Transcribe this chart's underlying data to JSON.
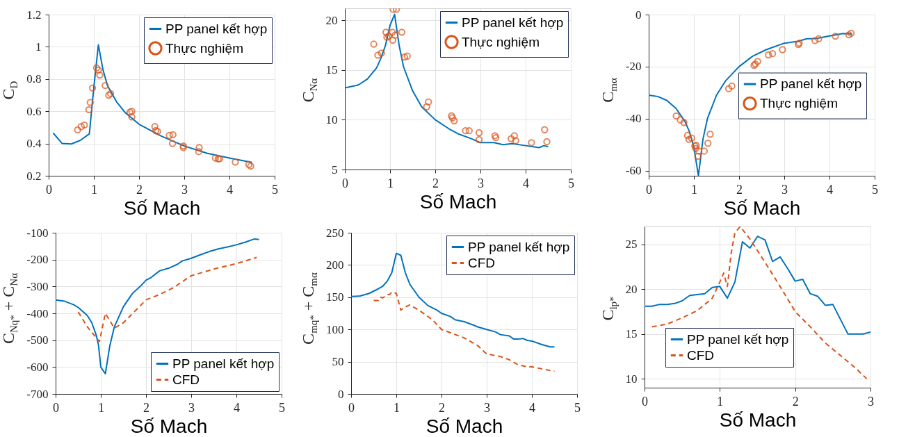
{
  "chart_data": [
    {
      "type": "line",
      "xlabel": "Số Mach",
      "ylabel": "C$_{D}$",
      "xlim": [
        0,
        5
      ],
      "xticks": [
        0,
        1,
        2,
        3,
        4,
        5
      ],
      "ylim": [
        0.2,
        1.2
      ],
      "yticks": [
        0.2,
        0.4,
        0.6,
        0.8,
        1,
        1.2
      ],
      "grid": true,
      "legend": "top right",
      "series": [
        {
          "name": "PP panel kết hợp",
          "color": "#0072bd",
          "x": [
            0.1,
            0.3,
            0.5,
            0.7,
            0.9,
            1.0,
            1.1,
            1.2,
            1.3,
            1.5,
            1.7,
            2.0,
            2.5,
            3.0,
            3.5,
            4.0,
            4.5
          ],
          "values": [
            0.465,
            0.4,
            0.397,
            0.42,
            0.46,
            0.75,
            1.013,
            0.86,
            0.76,
            0.66,
            0.59,
            0.52,
            0.445,
            0.385,
            0.34,
            0.31,
            0.283
          ]
        },
        {
          "name": "Thực nghiệm",
          "type": "scatter",
          "marker": "circle",
          "color": "#d95319",
          "x": [
            0.64,
            0.72,
            0.79,
            0.89,
            0.92,
            0.97,
            1.06,
            1.1,
            1.13,
            1.25,
            1.33,
            1.37,
            1.8,
            1.84,
            1.84,
            2.35,
            2.37,
            2.41,
            2.67,
            2.75,
            2.74,
            2.98,
            2.98,
            3.33,
            3.32,
            3.69,
            3.75,
            3.78,
            4.13,
            4.43,
            4.47
          ],
          "values": [
            0.485,
            0.505,
            0.515,
            0.61,
            0.655,
            0.745,
            0.87,
            0.855,
            0.825,
            0.76,
            0.7,
            0.71,
            0.595,
            0.6,
            0.565,
            0.505,
            0.48,
            0.475,
            0.45,
            0.455,
            0.4,
            0.385,
            0.375,
            0.375,
            0.35,
            0.31,
            0.305,
            0.305,
            0.285,
            0.27,
            0.26
          ]
        }
      ]
    },
    {
      "type": "line",
      "xlabel": "Số Mach",
      "ylabel": "C$_{Nα}$",
      "xlim": [
        0,
        5
      ],
      "xticks": [
        0,
        1,
        2,
        3,
        4,
        5
      ],
      "ylim": [
        5,
        21.2
      ],
      "yticks": [
        5,
        10,
        15,
        20
      ],
      "grid": true,
      "legend": "top right",
      "series": [
        {
          "name": "PP panel kết hợp",
          "color": "#0072bd",
          "x": [
            0,
            0.3,
            0.5,
            0.7,
            0.8,
            0.9,
            1.0,
            1.1,
            1.2,
            1.3,
            1.5,
            1.7,
            2.0,
            2.3,
            2.5,
            2.8,
            3.0,
            3.3,
            3.5,
            3.7,
            4.0,
            4.3,
            4.4,
            4.5
          ],
          "values": [
            13.2,
            13.5,
            14.1,
            15.2,
            16.2,
            17.5,
            19.5,
            20.6,
            17.5,
            15.3,
            12.9,
            11.3,
            10.0,
            9.1,
            8.6,
            8.1,
            7.7,
            7.7,
            7.5,
            7.6,
            7.4,
            7.2,
            7.4,
            7.3
          ]
        },
        {
          "name": "Thực nghiệm",
          "type": "scatter",
          "marker": "circle",
          "color": "#d95319",
          "x": [
            0.64,
            0.73,
            0.81,
            0.91,
            0.93,
            0.97,
            1.05,
            1.06,
            1.11,
            1.07,
            1.14,
            1.26,
            1.32,
            1.38,
            1.81,
            1.85,
            2.36,
            2.38,
            2.42,
            2.67,
            2.75,
            2.97,
            2.97,
            3.32,
            3.34,
            3.68,
            3.75,
            3.78,
            4.13,
            4.42,
            4.47
          ],
          "values": [
            17.6,
            16.5,
            16.7,
            18.8,
            18.3,
            18.4,
            18.8,
            18.0,
            18.5,
            21.1,
            21.1,
            18.8,
            16.3,
            16.4,
            11.3,
            11.8,
            10.4,
            10.2,
            9.9,
            8.9,
            8.9,
            8.7,
            8.0,
            8.4,
            8.2,
            8.1,
            8.4,
            7.9,
            7.7,
            9.0,
            7.8
          ]
        }
      ]
    },
    {
      "type": "line",
      "xlabel": "Số Mach",
      "ylabel": "C$_{mα}$",
      "xlim": [
        0,
        5
      ],
      "xticks": [
        0,
        1,
        2,
        3,
        4,
        5
      ],
      "ylim": [
        -62,
        0
      ],
      "yticks": [
        -60,
        -40,
        -20,
        0
      ],
      "grid": true,
      "legend": "right",
      "series": [
        {
          "name": "PP panel kết hợp",
          "color": "#0072bd",
          "x": [
            0,
            0.2,
            0.4,
            0.6,
            0.8,
            0.9,
            1.0,
            1.1,
            1.2,
            1.3,
            1.5,
            1.7,
            2.0,
            2.3,
            2.6,
            3.0,
            3.3,
            3.5,
            3.7,
            4.0,
            4.3,
            4.5
          ],
          "values": [
            -31,
            -31.5,
            -33,
            -36,
            -41,
            -45,
            -51,
            -62,
            -48,
            -40,
            -31,
            -25.5,
            -20,
            -16,
            -13.5,
            -11,
            -10.3,
            -9.3,
            -9.2,
            -8.2,
            -7.3,
            -7.5
          ]
        },
        {
          "name": "Thực nghiệm",
          "type": "scatter",
          "marker": "circle",
          "color": "#d95319",
          "x": [
            0.61,
            0.7,
            0.78,
            0.86,
            0.89,
            0.95,
            1.02,
            1.05,
            1.04,
            1.09,
            1.11,
            1.23,
            1.31,
            1.36,
            1.77,
            1.84,
            2.33,
            2.36,
            2.41,
            2.65,
            2.74,
            2.96,
            3.31,
            3.33,
            3.68,
            3.76,
            4.13,
            4.43,
            4.48
          ],
          "values": [
            -39,
            -40.5,
            -41.5,
            -46.5,
            -48,
            -47.5,
            -50.5,
            -50.3,
            -51.5,
            -54.5,
            -52.5,
            -52.5,
            -49.5,
            -46,
            -28.5,
            -27.5,
            -19.5,
            -19,
            -18,
            -15.5,
            -15,
            -13.5,
            -11.5,
            -11,
            -10,
            -9.3,
            -8.3,
            -7.8,
            -7.2
          ]
        }
      ]
    },
    {
      "type": "line",
      "xlabel": "Số Mach",
      "ylabel": "C$_{Nq*}$ + C$_{Nα}$",
      "xlim": [
        0,
        5
      ],
      "xticks": [
        0,
        1,
        2,
        3,
        4,
        5
      ],
      "ylim": [
        -700,
        -100
      ],
      "yticks": [
        -700,
        -600,
        -500,
        -400,
        -300,
        -200,
        -100
      ],
      "grid": true,
      "legend": "bottom right",
      "series": [
        {
          "name": "PP panel kết hợp",
          "color": "#0072bd",
          "x": [
            0,
            0.2,
            0.4,
            0.5,
            0.7,
            0.8,
            0.9,
            0.95,
            1.0,
            1.1,
            1.2,
            1.3,
            1.5,
            1.7,
            1.9,
            2.0,
            2.1,
            2.3,
            2.5,
            2.7,
            2.8,
            3.0,
            3.2,
            3.4,
            3.6,
            3.8,
            4.0,
            4.2,
            4.4,
            4.5
          ],
          "values": [
            -350,
            -355,
            -368,
            -378,
            -408,
            -435,
            -482,
            -520,
            -600,
            -625,
            -520,
            -450,
            -375,
            -326,
            -295,
            -277,
            -268,
            -242,
            -232,
            -217,
            -205,
            -195,
            -182,
            -170,
            -160,
            -153,
            -145,
            -135,
            -123,
            -125
          ]
        },
        {
          "name": "CFD",
          "color": "#d95319",
          "line_style": "dashed",
          "x": [
            0.5,
            0.7,
            0.97,
            1.1,
            1.3,
            1.5,
            2.0,
            2.3,
            2.6,
            3.0,
            3.5,
            4.0,
            4.45
          ],
          "values": [
            -395,
            -450,
            -505,
            -400,
            -455,
            -435,
            -350,
            -330,
            -305,
            -260,
            -235,
            -215,
            -192
          ]
        }
      ]
    },
    {
      "type": "line",
      "xlabel": "Số Mach",
      "ylabel": "C$_{mq*}$ + C$_{mα}$",
      "xlim": [
        0,
        5
      ],
      "xticks": [
        0,
        1,
        2,
        3,
        4,
        5
      ],
      "ylim": [
        0,
        250
      ],
      "yticks": [
        0,
        50,
        100,
        150,
        200,
        250
      ],
      "grid": true,
      "legend": "top right",
      "series": [
        {
          "name": "PP panel kết hợp",
          "color": "#0072bd",
          "x": [
            0,
            0.2,
            0.4,
            0.6,
            0.7,
            0.8,
            0.9,
            1.0,
            1.1,
            1.2,
            1.3,
            1.5,
            1.7,
            1.9,
            2.0,
            2.2,
            2.3,
            2.5,
            2.7,
            2.8,
            3.0,
            3.2,
            3.3,
            3.5,
            3.6,
            3.7,
            3.8,
            3.9,
            4.0,
            4.2,
            4.4,
            4.5
          ],
          "values": [
            151,
            152,
            156,
            163,
            167,
            175,
            188,
            218,
            215,
            188,
            170,
            150,
            137,
            130,
            125,
            120,
            115,
            112,
            107,
            104,
            100,
            96,
            92,
            90,
            85,
            85,
            86,
            83,
            82,
            77,
            73,
            73
          ]
        },
        {
          "name": "CFD",
          "color": "#d95319",
          "line_style": "dashed",
          "x": [
            0.5,
            0.6,
            0.65,
            0.7,
            0.8,
            0.85,
            0.9,
            1.0,
            1.1,
            1.2,
            1.3,
            1.5,
            1.8,
            2.0,
            2.5,
            2.8,
            3.0,
            3.3,
            3.5,
            3.7,
            3.9,
            4.0,
            4.5
          ],
          "values": [
            145,
            145,
            150,
            149,
            154,
            154,
            158,
            156,
            130,
            135,
            138,
            130,
            115,
            100,
            87,
            75,
            62,
            58,
            53,
            45,
            42,
            42,
            35
          ]
        }
      ]
    },
    {
      "type": "line",
      "xlabel": "Số Mach",
      "ylabel": "C$_{lp*}$",
      "xlim": [
        0,
        3
      ],
      "xticks": [
        0,
        1,
        2,
        3
      ],
      "ylim": [
        9,
        27
      ],
      "yticks": [
        10,
        15,
        20,
        25
      ],
      "grid": true,
      "legend": "bottom left",
      "series": [
        {
          "name": "PP panel kết hợp",
          "color": "#0072bd",
          "x": [
            0,
            0.1,
            0.2,
            0.3,
            0.4,
            0.5,
            0.6,
            0.7,
            0.8,
            0.9,
            1.0,
            1.1,
            1.2,
            1.3,
            1.4,
            1.5,
            1.6,
            1.7,
            1.8,
            1.9,
            2.0,
            2.1,
            2.2,
            2.3,
            2.4,
            2.5,
            2.7,
            2.8,
            2.9,
            3.0
          ],
          "values": [
            18.1,
            18.1,
            18.3,
            18.3,
            18.4,
            18.7,
            19.3,
            19.4,
            19.5,
            20.2,
            20.3,
            19.0,
            20.8,
            25.3,
            24.6,
            25.9,
            25.5,
            23.1,
            23.6,
            22.3,
            20.9,
            21.1,
            19.5,
            19.2,
            18.2,
            18.3,
            15.0,
            15.0,
            15.0,
            15.2
          ]
        },
        {
          "name": "CFD",
          "color": "#d95319",
          "line_style": "dashed",
          "x": [
            0.1,
            0.3,
            0.5,
            0.7,
            0.9,
            1.0,
            1.05,
            1.1,
            1.15,
            1.2,
            1.27,
            1.4,
            1.6,
            1.8,
            2.0,
            2.2,
            2.4,
            2.6,
            2.8,
            2.95
          ],
          "values": [
            15.8,
            16.1,
            16.8,
            17.6,
            19.0,
            20.8,
            21.8,
            20.3,
            24,
            26.3,
            27.0,
            25.6,
            23.0,
            20.3,
            17.5,
            15.8,
            14.0,
            12.6,
            11.2,
            10.0
          ]
        }
      ]
    }
  ]
}
